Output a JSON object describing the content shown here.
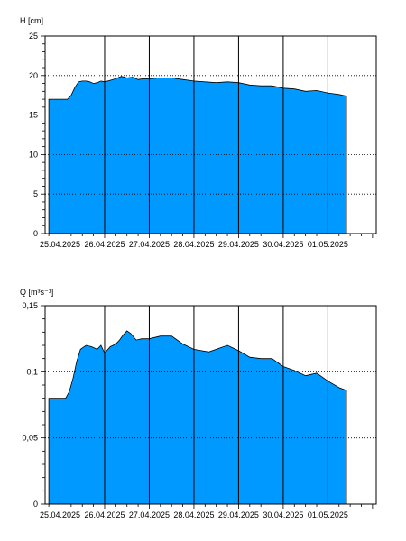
{
  "chart_data": [
    {
      "type": "area",
      "ylabel": "H [cm]",
      "ylim": [
        0,
        25
      ],
      "yticks": [
        0,
        5,
        10,
        15,
        20,
        25
      ],
      "ytick_labels": [
        "0",
        "5",
        "10",
        "15",
        "20",
        "25"
      ],
      "xlim": [
        "2025-04-24T16:00",
        "2025-05-02T02:00"
      ],
      "xtick_dates": [
        "2025-04-25",
        "2025-04-26",
        "2025-04-27",
        "2025-04-28",
        "2025-04-29",
        "2025-04-30",
        "2025-05-01"
      ],
      "xtick_labels": [
        "25.04.2025",
        "26.04.2025",
        "27.04.2025",
        "28.04.2025",
        "29.04.2025",
        "30.04.2025",
        "01.05.2025"
      ],
      "grid": {
        "x": "solid",
        "y": "dotted"
      },
      "fill_color": "#0099FF",
      "series": [
        {
          "x": [
            "2025-04-24T18:00",
            "2025-04-25T04:00",
            "2025-04-25T06:00",
            "2025-04-25T08:00",
            "2025-04-25T10:00",
            "2025-04-25T12:00",
            "2025-04-25T14:00",
            "2025-04-25T16:00",
            "2025-04-25T18:00",
            "2025-04-25T20:00",
            "2025-04-25T22:00",
            "2025-04-26T00:00",
            "2025-04-26T03:00",
            "2025-04-26T06:00",
            "2025-04-26T09:00",
            "2025-04-26T12:00",
            "2025-04-26T15:00",
            "2025-04-26T18:00",
            "2025-04-26T21:00",
            "2025-04-27T00:00",
            "2025-04-27T06:00",
            "2025-04-27T12:00",
            "2025-04-27T18:00",
            "2025-04-28T00:00",
            "2025-04-28T06:00",
            "2025-04-28T12:00",
            "2025-04-28T18:00",
            "2025-04-29T00:00",
            "2025-04-29T06:00",
            "2025-04-29T12:00",
            "2025-04-29T18:00",
            "2025-04-30T00:00",
            "2025-04-30T06:00",
            "2025-04-30T12:00",
            "2025-04-30T18:00",
            "2025-05-01T00:00",
            "2025-05-01T06:00",
            "2025-05-01T10:00"
          ],
          "y": [
            17.0,
            17.0,
            17.5,
            18.5,
            19.2,
            19.3,
            19.3,
            19.2,
            19.0,
            19.1,
            19.3,
            19.2,
            19.4,
            19.6,
            19.9,
            19.7,
            19.8,
            19.5,
            19.6,
            19.6,
            19.7,
            19.7,
            19.5,
            19.3,
            19.2,
            19.1,
            19.2,
            19.1,
            18.8,
            18.7,
            18.7,
            18.4,
            18.3,
            18.0,
            18.1,
            17.8,
            17.6,
            17.4
          ]
        }
      ]
    },
    {
      "type": "area",
      "ylabel": "Q [m³s⁻¹]",
      "ylim": [
        0,
        0.15
      ],
      "yticks": [
        0,
        0.05,
        0.1,
        0.15
      ],
      "ytick_labels": [
        "0",
        "0,05",
        "0,1",
        "0,15"
      ],
      "xlim": [
        "2025-04-24T16:00",
        "2025-05-02T02:00"
      ],
      "xtick_dates": [
        "2025-04-25",
        "2025-04-26",
        "2025-04-27",
        "2025-04-28",
        "2025-04-29",
        "2025-04-30",
        "2025-05-01"
      ],
      "xtick_labels": [
        "25.04.2025",
        "26.04.2025",
        "27.04.2025",
        "28.04.2025",
        "29.04.2025",
        "30.04.2025",
        "01.05.2025"
      ],
      "grid": {
        "x": "solid",
        "y": "dotted"
      },
      "fill_color": "#0099FF",
      "series": [
        {
          "x": [
            "2025-04-24T18:00",
            "2025-04-25T03:00",
            "2025-04-25T05:00",
            "2025-04-25T07:00",
            "2025-04-25T09:00",
            "2025-04-25T11:00",
            "2025-04-25T14:00",
            "2025-04-25T17:00",
            "2025-04-25T20:00",
            "2025-04-25T22:00",
            "2025-04-26T00:00",
            "2025-04-26T03:00",
            "2025-04-26T06:00",
            "2025-04-26T08:00",
            "2025-04-26T10:00",
            "2025-04-26T12:00",
            "2025-04-26T14:00",
            "2025-04-26T17:00",
            "2025-04-26T20:00",
            "2025-04-27T00:00",
            "2025-04-27T06:00",
            "2025-04-27T12:00",
            "2025-04-27T18:00",
            "2025-04-28T00:00",
            "2025-04-28T08:00",
            "2025-04-28T14:00",
            "2025-04-28T18:00",
            "2025-04-29T00:00",
            "2025-04-29T06:00",
            "2025-04-29T12:00",
            "2025-04-29T18:00",
            "2025-04-30T00:00",
            "2025-04-30T06:00",
            "2025-04-30T12:00",
            "2025-04-30T18:00",
            "2025-05-01T00:00",
            "2025-05-01T06:00",
            "2025-05-01T10:00"
          ],
          "y": [
            0.08,
            0.08,
            0.085,
            0.095,
            0.108,
            0.117,
            0.12,
            0.119,
            0.117,
            0.12,
            0.114,
            0.119,
            0.121,
            0.124,
            0.128,
            0.131,
            0.129,
            0.124,
            0.125,
            0.125,
            0.127,
            0.127,
            0.121,
            0.117,
            0.115,
            0.118,
            0.12,
            0.116,
            0.111,
            0.11,
            0.11,
            0.104,
            0.101,
            0.097,
            0.099,
            0.093,
            0.088,
            0.086
          ]
        }
      ]
    }
  ]
}
